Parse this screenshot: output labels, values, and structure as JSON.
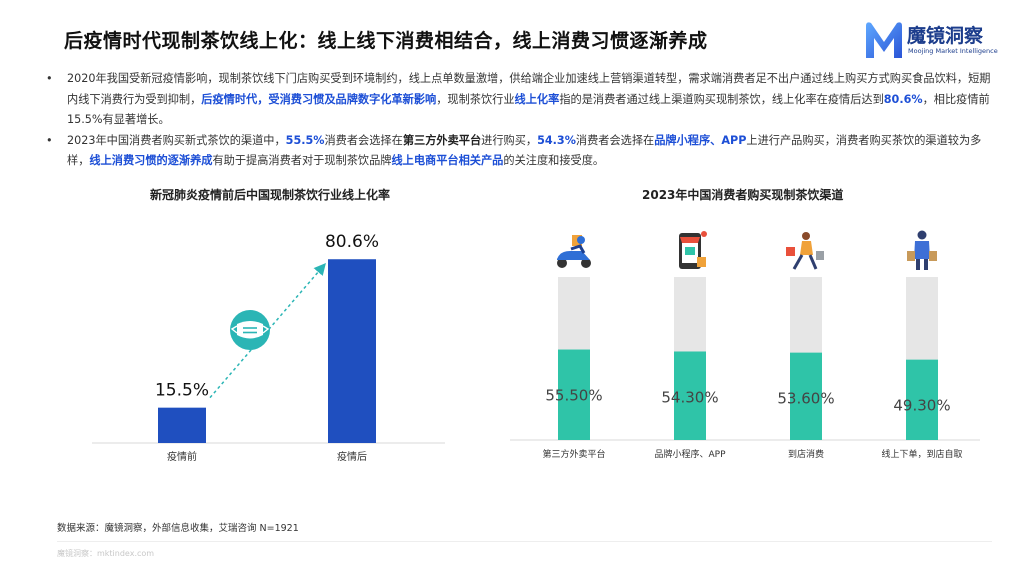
{
  "header": {
    "title": "后疫情时代现制茶饮线上化：线上线下消费相结合，线上消费习惯逐渐养成",
    "logo_name": "魔镜洞察",
    "logo_tagline": "Moojing Market Intelligence",
    "logo_color": "#1c3d8c"
  },
  "bullets": [
    {
      "segments": [
        {
          "text": "2020年我国受新冠疫情影响，现制茶饮线下门店购买受到环境制约，线上点单数量激增，供给端企业加速线上营销渠道转型，需求端消费者足不出户通过线上购买方式购买食品饮料，短期内线下消费行为受到抑制，",
          "style": "normal"
        },
        {
          "text": "后疫情时代，受消费习惯及品牌数字化革新影响",
          "style": "hl"
        },
        {
          "text": "，现制茶饮行业",
          "style": "normal"
        },
        {
          "text": "线上化率",
          "style": "hl"
        },
        {
          "text": "指的是消费者通过线上渠道购买现制茶饮，线上化率在疫情后达到",
          "style": "normal"
        },
        {
          "text": "80.6%",
          "style": "hl"
        },
        {
          "text": "，相比疫情前15.5%有显著增长。",
          "style": "normal"
        }
      ]
    },
    {
      "segments": [
        {
          "text": "2023年中国消费者购买新式茶饮的渠道中，",
          "style": "normal"
        },
        {
          "text": "55.5%",
          "style": "hl"
        },
        {
          "text": "消费者会选择在",
          "style": "normal"
        },
        {
          "text": "第三方外卖平台",
          "style": "hl-dark"
        },
        {
          "text": "进行购买，",
          "style": "normal"
        },
        {
          "text": "54.3%",
          "style": "hl"
        },
        {
          "text": "消费者会选择在",
          "style": "normal"
        },
        {
          "text": "品牌小程序、APP",
          "style": "hl"
        },
        {
          "text": "上进行产品购买，消费者购买茶饮的渠道较为多样，",
          "style": "normal"
        },
        {
          "text": "线上消费习惯的逐渐养成",
          "style": "hl"
        },
        {
          "text": "有助于提高消费者对于现制茶饮品牌",
          "style": "normal"
        },
        {
          "text": "线上电商平台相关产品",
          "style": "hl"
        },
        {
          "text": "的关注度和接受度。",
          "style": "normal"
        }
      ]
    }
  ],
  "chart_data": [
    {
      "type": "bar",
      "title": "新冠肺炎疫情前后中国现制茶饮行业线上化率",
      "categories": [
        "疫情前",
        "疫情后"
      ],
      "values": [
        15.5,
        80.6
      ],
      "value_labels": [
        "15.5%",
        "80.6%"
      ],
      "ylim": [
        0,
        100
      ],
      "bar_color": "#1f4fbf",
      "arrow_color": "#2bb5b5",
      "icon": "face-mask-icon",
      "grid": false
    },
    {
      "type": "bar",
      "title": "2023年中国消费者购买现制茶饮渠道",
      "categories": [
        "第三方外卖平台",
        "品牌小程序、APP",
        "到店消费",
        "线上下单，到店自取"
      ],
      "values": [
        55.5,
        54.3,
        53.6,
        49.3
      ],
      "value_labels": [
        "55.50%",
        "54.30%",
        "53.60%",
        "49.30%"
      ],
      "ylim": [
        0,
        100
      ],
      "bar_color": "#2fc4a8",
      "track_color": "#e6e6e6",
      "icons": [
        "delivery-scooter-icon",
        "phone-shop-icon",
        "shopping-person-icon",
        "pickup-person-icon"
      ],
      "grid": false
    }
  ],
  "footer": {
    "source": "数据来源：魔镜洞察，外部信息收集，艾瑞咨询 N=1921",
    "site": "魔镜洞察：mktindex.com"
  }
}
